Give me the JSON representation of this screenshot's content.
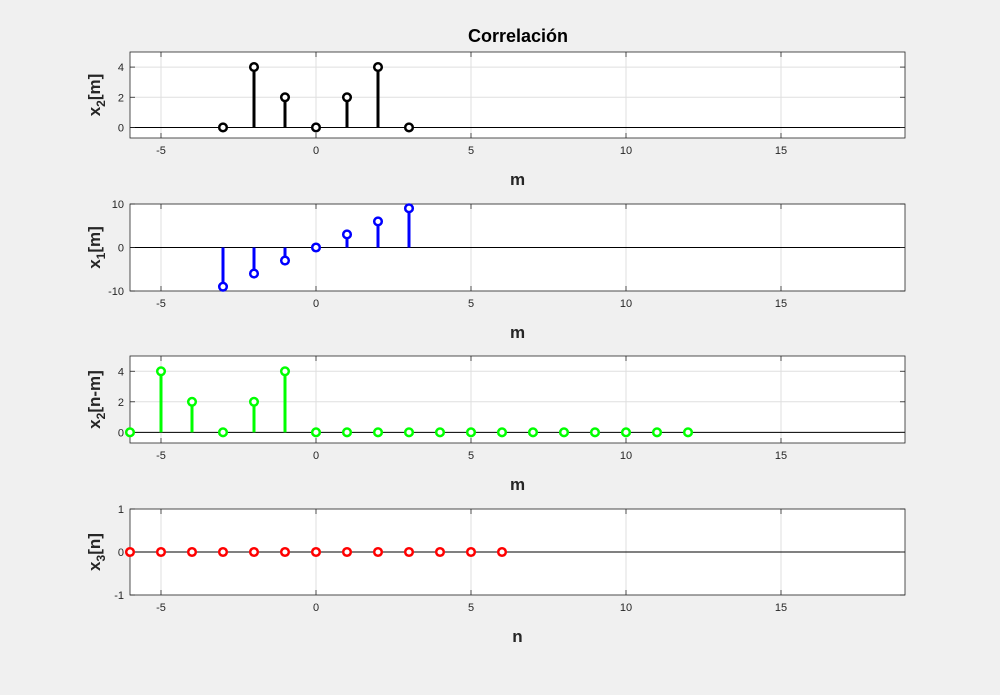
{
  "title": "Correlación",
  "chart_data": [
    {
      "type": "stem",
      "ylabel": {
        "base": "x",
        "sub": "2",
        "rest": "[m]"
      },
      "xlabel": "m",
      "xlim": [
        -6,
        19
      ],
      "ylim": [
        -0.7,
        5
      ],
      "yticks": [
        0,
        2,
        4
      ],
      "xticks": [
        -5,
        0,
        5,
        10,
        15
      ],
      "grid": true,
      "color": "#000000",
      "x": [
        -3,
        -2,
        -1,
        0,
        1,
        2,
        3
      ],
      "y": [
        0,
        4,
        2,
        0,
        2,
        4,
        0
      ]
    },
    {
      "type": "stem",
      "ylabel": {
        "base": "x",
        "sub": "1",
        "rest": "[m]"
      },
      "xlabel": "m",
      "xlim": [
        -6,
        19
      ],
      "ylim": [
        -10,
        10
      ],
      "yticks": [
        -10,
        0,
        10
      ],
      "xticks": [
        -5,
        0,
        5,
        10,
        15
      ],
      "grid": true,
      "color": "#0000ff",
      "x": [
        -3,
        -2,
        -1,
        0,
        1,
        2,
        3
      ],
      "y": [
        -9,
        -6,
        -3,
        0,
        3,
        6,
        9
      ]
    },
    {
      "type": "stem",
      "ylabel": {
        "base": "x",
        "sub": "2",
        "rest": "[n-m]"
      },
      "xlabel": "m",
      "xlim": [
        -6,
        19
      ],
      "ylim": [
        -0.7,
        5
      ],
      "yticks": [
        0,
        2,
        4
      ],
      "xticks": [
        -5,
        0,
        5,
        10,
        15
      ],
      "grid": true,
      "color": "#00ff00",
      "x": [
        -6,
        -5,
        -4,
        -3,
        -2,
        -1,
        0,
        1,
        2,
        3,
        4,
        5,
        6,
        7,
        8,
        9,
        10,
        11,
        12
      ],
      "y": [
        0,
        4,
        2,
        0,
        2,
        4,
        0,
        0,
        0,
        0,
        0,
        0,
        0,
        0,
        0,
        0,
        0,
        0,
        0
      ]
    },
    {
      "type": "stem",
      "ylabel": {
        "base": "x",
        "sub": "3",
        "rest": "[n]"
      },
      "xlabel": "n",
      "xlim": [
        -6,
        19
      ],
      "ylim": [
        -1,
        1
      ],
      "yticks": [
        -1,
        0,
        1
      ],
      "xticks": [
        -5,
        0,
        5,
        10,
        15
      ],
      "grid": true,
      "color": "#ff0000",
      "x": [
        -6,
        -5,
        -4,
        -3,
        -2,
        -1,
        0,
        1,
        2,
        3,
        4,
        5,
        6
      ],
      "y": [
        0,
        0,
        0,
        0,
        0,
        0,
        0,
        0,
        0,
        0,
        0,
        0,
        0
      ]
    }
  ]
}
